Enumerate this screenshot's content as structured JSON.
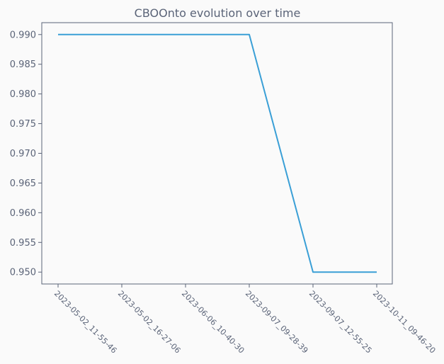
{
  "chart_data": {
    "type": "line",
    "title": "CBOOnto evolution over time",
    "xlabel": "",
    "ylabel": "",
    "categories": [
      "2023-05-02_11-55-46",
      "2023-05-02_16-27-06",
      "2023-06-06_10-40-30",
      "2023-09-07_09-28-39",
      "2023-09-07_12-55-25",
      "2023-10-11_09-46-20"
    ],
    "series": [
      {
        "values": [
          0.99,
          0.99,
          0.99,
          0.99,
          0.95,
          0.95
        ],
        "color": "#3a9fd6"
      }
    ],
    "ylim": [
      0.948,
      0.992
    ],
    "yticks": [
      0.95,
      0.955,
      0.96,
      0.965,
      0.97,
      0.975,
      0.98,
      0.985,
      0.99
    ],
    "grid": false,
    "legend": "none",
    "colors": {
      "axis": "#5b6478",
      "text": "#5b6478",
      "plot_background": "#fafafa",
      "page_background": "#fafafa"
    }
  }
}
